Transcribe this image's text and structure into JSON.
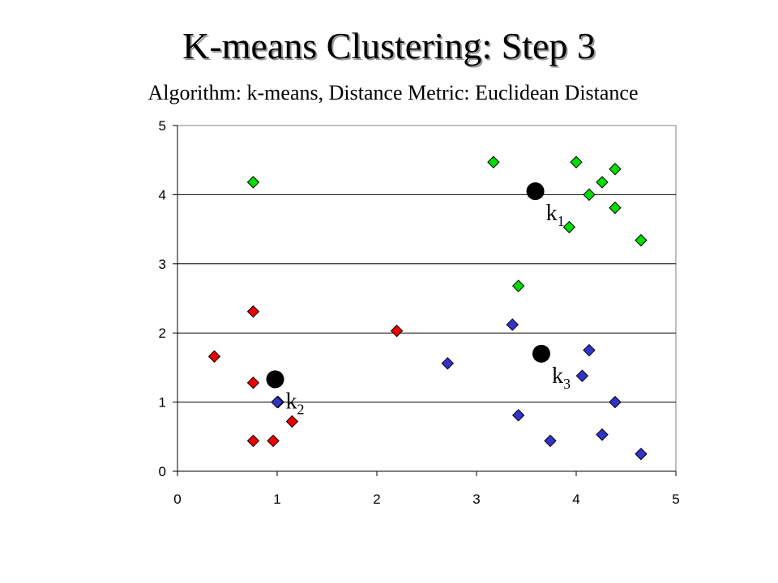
{
  "chart_data": {
    "type": "scatter",
    "title": "K-means Clustering: Step 3",
    "subtitle": "Algorithm: k-means, Distance Metric: Euclidean Distance",
    "xlabel": "",
    "ylabel": "",
    "xlim": [
      0,
      5
    ],
    "ylim": [
      0,
      5
    ],
    "xticks": [
      "0",
      "1",
      "2",
      "3",
      "4",
      "5"
    ],
    "yticks": [
      "0",
      "1",
      "2",
      "3",
      "4",
      "5"
    ],
    "grid": "horizontal",
    "series": [
      {
        "color": "#00dd00",
        "marker": "diamond",
        "points": [
          [
            0.76,
            4.18
          ],
          [
            3.17,
            4.47
          ],
          [
            4.0,
            4.47
          ],
          [
            4.13,
            4.0
          ],
          [
            4.26,
            4.18
          ],
          [
            4.39,
            4.37
          ],
          [
            4.39,
            3.81
          ],
          [
            3.93,
            3.53
          ],
          [
            4.65,
            3.34
          ],
          [
            3.42,
            2.68
          ]
        ]
      },
      {
        "color": "#ee0000",
        "marker": "diamond",
        "points": [
          [
            0.76,
            2.31
          ],
          [
            0.37,
            1.66
          ],
          [
            0.76,
            1.28
          ],
          [
            1.01,
            1.0
          ],
          [
            1.15,
            0.72
          ],
          [
            0.76,
            0.44
          ],
          [
            0.96,
            0.44
          ],
          [
            2.2,
            2.03
          ]
        ]
      },
      {
        "color": "#3333cc",
        "marker": "diamond",
        "points": [
          [
            2.71,
            1.56
          ],
          [
            3.36,
            2.12
          ],
          [
            4.13,
            1.75
          ],
          [
            4.06,
            1.38
          ],
          [
            4.39,
            1.0
          ],
          [
            3.42,
            0.81
          ],
          [
            3.74,
            0.44
          ],
          [
            4.26,
            0.53
          ],
          [
            4.65,
            0.25
          ],
          [
            1.0,
            1.0
          ]
        ]
      }
    ],
    "centroids": [
      {
        "label": "k",
        "sub": "1",
        "x": 3.59,
        "y": 4.05
      },
      {
        "label": "k",
        "sub": "2",
        "x": 0.98,
        "y": 1.33
      },
      {
        "label": "k",
        "sub": "3",
        "x": 3.65,
        "y": 1.7
      }
    ]
  }
}
